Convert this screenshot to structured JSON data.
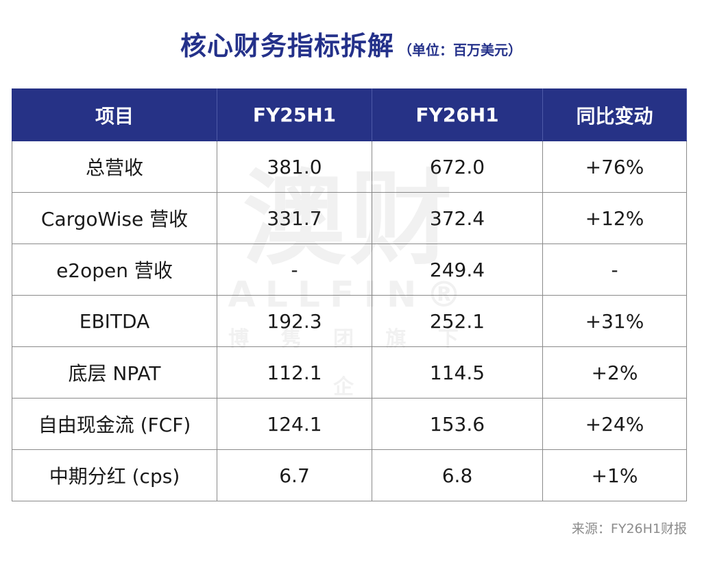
{
  "title": {
    "main": "核心财务指标拆解",
    "unit": "（单位：百万美元）"
  },
  "watermark": {
    "big": "澳财",
    "en": "ALLFIN®",
    "sub": "博 隽 团 旗 下 企"
  },
  "table": {
    "headers": [
      "项目",
      "FY25H1",
      "FY26H1",
      "同比变动"
    ],
    "rows": [
      [
        "总营收",
        "381.0",
        "672.0",
        "+76%"
      ],
      [
        "CargoWise 营收",
        "331.7",
        "372.4",
        "+12%"
      ],
      [
        "e2open 营收",
        "-",
        "249.4",
        "-"
      ],
      [
        "EBITDA",
        "192.3",
        "252.1",
        "+31%"
      ],
      [
        "底层 NPAT",
        "112.1",
        "114.5",
        "+2%"
      ],
      [
        "自由现金流 (FCF)",
        "124.1",
        "153.6",
        "+24%"
      ],
      [
        "中期分红 (cps)",
        "6.7",
        "6.8",
        "+1%"
      ]
    ]
  },
  "source": "来源：FY26H1财报",
  "colors": {
    "header_bg": "#263286",
    "title": "#24318a",
    "border": "#8a8a8a",
    "source_text": "#8c8c8c"
  }
}
